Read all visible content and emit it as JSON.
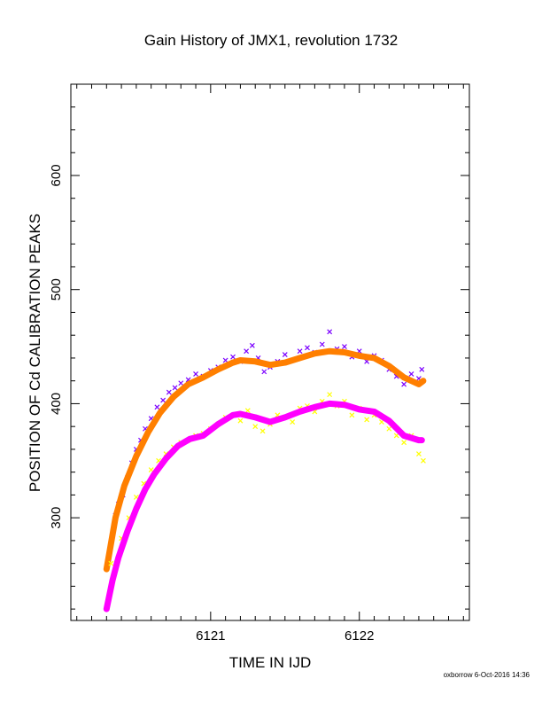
{
  "chart_data": {
    "type": "scatter",
    "title": "Gain History of JMX1, revolution 1732",
    "xlabel": "TIME IN IJD",
    "ylabel": "POSITION OF Cd CALIBRATION PEAKS",
    "footer": "oxborrow  6-Oct-2016 14:36",
    "xlim": [
      6120.06,
      6122.74
    ],
    "ylim": [
      210,
      680
    ],
    "xticks": [
      6121,
      6122
    ],
    "yticks": [
      300,
      400,
      500,
      600
    ],
    "grid": false,
    "legend": "none",
    "series": [
      {
        "color": "#7b00ff",
        "marker": "x",
        "points": [
          [
            6120.31,
            263
          ],
          [
            6120.36,
            302
          ],
          [
            6120.38,
            312
          ],
          [
            6120.41,
            320
          ],
          [
            6120.44,
            335
          ],
          [
            6120.47,
            348
          ],
          [
            6120.5,
            360
          ],
          [
            6120.53,
            368
          ],
          [
            6120.56,
            378
          ],
          [
            6120.6,
            387
          ],
          [
            6120.64,
            397
          ],
          [
            6120.68,
            403
          ],
          [
            6120.72,
            410
          ],
          [
            6120.76,
            414
          ],
          [
            6120.8,
            418
          ],
          [
            6120.85,
            421
          ],
          [
            6120.9,
            426
          ],
          [
            6120.95,
            424
          ],
          [
            6121.0,
            429
          ],
          [
            6121.05,
            432
          ],
          [
            6121.1,
            438
          ],
          [
            6121.15,
            441
          ],
          [
            6121.2,
            437
          ],
          [
            6121.24,
            446
          ],
          [
            6121.28,
            451
          ],
          [
            6121.32,
            440
          ],
          [
            6121.36,
            428
          ],
          [
            6121.4,
            432
          ],
          [
            6121.45,
            437
          ],
          [
            6121.5,
            443
          ],
          [
            6121.55,
            438
          ],
          [
            6121.6,
            446
          ],
          [
            6121.65,
            449
          ],
          [
            6121.7,
            445
          ],
          [
            6121.75,
            452
          ],
          [
            6121.8,
            463
          ],
          [
            6121.85,
            448
          ],
          [
            6121.9,
            450
          ],
          [
            6121.95,
            441
          ],
          [
            6122.0,
            446
          ],
          [
            6122.05,
            437
          ],
          [
            6122.1,
            442
          ],
          [
            6122.15,
            438
          ],
          [
            6122.2,
            430
          ],
          [
            6122.25,
            424
          ],
          [
            6122.3,
            417
          ],
          [
            6122.35,
            426
          ],
          [
            6122.4,
            422
          ],
          [
            6122.42,
            430
          ]
        ]
      },
      {
        "color": "#ff7f00",
        "marker": "line",
        "points": [
          [
            6120.3,
            255
          ],
          [
            6120.36,
            300
          ],
          [
            6120.42,
            328
          ],
          [
            6120.5,
            354
          ],
          [
            6120.58,
            375
          ],
          [
            6120.66,
            392
          ],
          [
            6120.75,
            406
          ],
          [
            6120.85,
            417
          ],
          [
            6120.95,
            423
          ],
          [
            6121.05,
            430
          ],
          [
            6121.15,
            436
          ],
          [
            6121.2,
            438
          ],
          [
            6121.3,
            437
          ],
          [
            6121.4,
            434
          ],
          [
            6121.5,
            436
          ],
          [
            6121.6,
            440
          ],
          [
            6121.7,
            444
          ],
          [
            6121.8,
            446
          ],
          [
            6121.9,
            445
          ],
          [
            6122.0,
            442
          ],
          [
            6122.1,
            440
          ],
          [
            6122.2,
            433
          ],
          [
            6122.3,
            423
          ],
          [
            6122.4,
            417
          ],
          [
            6122.43,
            420
          ]
        ]
      },
      {
        "color": "#ffff00",
        "marker": "x",
        "points": [
          [
            6120.33,
            260
          ],
          [
            6120.4,
            282
          ],
          [
            6120.45,
            300
          ],
          [
            6120.5,
            318
          ],
          [
            6120.55,
            330
          ],
          [
            6120.6,
            342
          ],
          [
            6120.65,
            350
          ],
          [
            6120.7,
            356
          ],
          [
            6120.75,
            362
          ],
          [
            6120.8,
            366
          ],
          [
            6120.85,
            368
          ],
          [
            6120.9,
            372
          ],
          [
            6120.95,
            374
          ],
          [
            6121.0,
            378
          ],
          [
            6121.05,
            382
          ],
          [
            6121.1,
            388
          ],
          [
            6121.15,
            390
          ],
          [
            6121.2,
            385
          ],
          [
            6121.25,
            394
          ],
          [
            6121.3,
            380
          ],
          [
            6121.35,
            376
          ],
          [
            6121.4,
            382
          ],
          [
            6121.45,
            390
          ],
          [
            6121.5,
            388
          ],
          [
            6121.55,
            384
          ],
          [
            6121.6,
            396
          ],
          [
            6121.65,
            398
          ],
          [
            6121.7,
            393
          ],
          [
            6121.75,
            402
          ],
          [
            6121.8,
            408
          ],
          [
            6121.85,
            398
          ],
          [
            6121.9,
            402
          ],
          [
            6121.95,
            390
          ],
          [
            6122.0,
            396
          ],
          [
            6122.05,
            386
          ],
          [
            6122.1,
            390
          ],
          [
            6122.15,
            384
          ],
          [
            6122.2,
            378
          ],
          [
            6122.25,
            372
          ],
          [
            6122.3,
            366
          ],
          [
            6122.35,
            372
          ],
          [
            6122.4,
            356
          ],
          [
            6122.43,
            350
          ]
        ]
      },
      {
        "color": "#ff00ff",
        "marker": "line",
        "points": [
          [
            6120.3,
            220
          ],
          [
            6120.34,
            245
          ],
          [
            6120.38,
            265
          ],
          [
            6120.44,
            288
          ],
          [
            6120.5,
            308
          ],
          [
            6120.56,
            325
          ],
          [
            6120.62,
            338
          ],
          [
            6120.7,
            352
          ],
          [
            6120.78,
            363
          ],
          [
            6120.86,
            369
          ],
          [
            6120.95,
            372
          ],
          [
            6121.05,
            382
          ],
          [
            6121.15,
            390
          ],
          [
            6121.2,
            391
          ],
          [
            6121.3,
            388
          ],
          [
            6121.4,
            384
          ],
          [
            6121.5,
            388
          ],
          [
            6121.6,
            393
          ],
          [
            6121.7,
            397
          ],
          [
            6121.8,
            400
          ],
          [
            6121.9,
            399
          ],
          [
            6122.0,
            395
          ],
          [
            6122.1,
            393
          ],
          [
            6122.2,
            385
          ],
          [
            6122.3,
            372
          ],
          [
            6122.4,
            368
          ],
          [
            6122.42,
            368
          ]
        ]
      }
    ]
  }
}
